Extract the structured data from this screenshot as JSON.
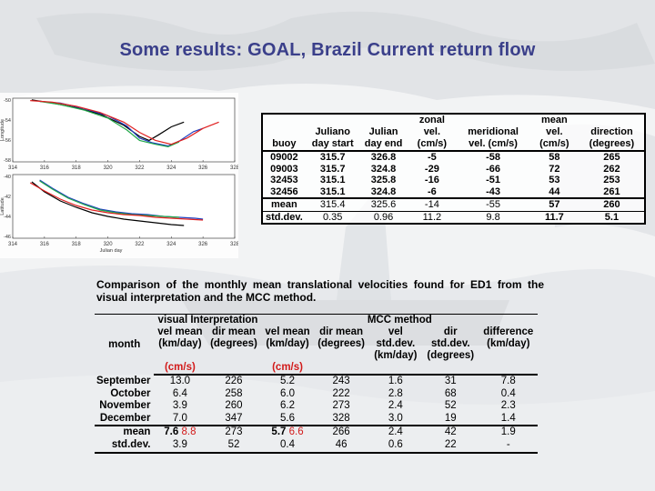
{
  "slide": {
    "title": "Some results: GOAL, Brazil Current return flow"
  },
  "colors": {
    "title": "#3a3f8a",
    "red_values": "#d21a1a",
    "series": [
      "#000000",
      "#1f3fbf",
      "#22a84a",
      "#e02020"
    ]
  },
  "chart_data": [
    {
      "type": "line",
      "ylabel": "Longitude",
      "xticks": [
        "314",
        "316",
        "318",
        "320",
        "322",
        "324",
        "326",
        "328"
      ],
      "yticks": [
        "-50",
        "-54",
        "-56",
        "-58"
      ],
      "xlim": [
        314,
        328
      ],
      "ylim": [
        -58,
        -50
      ],
      "series": [
        {
          "color": "#000000",
          "x": [
            315.2,
            316.5,
            318,
            319.5,
            321,
            322,
            322.6,
            323.2,
            324,
            324.8
          ],
          "y": [
            -50.2,
            -50.6,
            -51.2,
            -52,
            -53.4,
            -54.8,
            -55.3,
            -54.6,
            -53.6,
            -53
          ]
        },
        {
          "color": "#1f3fbf",
          "x": [
            315.7,
            317,
            318.5,
            320,
            321.2,
            322,
            322.8,
            323.8,
            324.5,
            325.4,
            326
          ],
          "y": [
            -50.4,
            -50.6,
            -51.3,
            -52.2,
            -53.5,
            -55,
            -55.6,
            -56,
            -55.4,
            -54.2,
            -53.8
          ]
        },
        {
          "color": "#22a84a",
          "x": [
            315.7,
            317,
            318.5,
            320,
            321.2,
            322,
            323,
            323.8,
            324.5
          ],
          "y": [
            -50.4,
            -50.8,
            -51.5,
            -52.5,
            -54,
            -55.3,
            -55.8,
            -56.1,
            -55.5
          ]
        },
        {
          "color": "#e02020",
          "x": [
            315.1,
            316.5,
            318,
            319.5,
            321,
            322,
            323,
            324,
            325,
            326,
            327
          ],
          "y": [
            -50.3,
            -50.5,
            -51,
            -51.8,
            -53,
            -54.3,
            -55.3,
            -55.8,
            -55,
            -53.8,
            -53
          ]
        }
      ]
    },
    {
      "type": "line",
      "xlabel": "Julian day",
      "ylabel": "Latitude",
      "xticks": [
        "314",
        "316",
        "318",
        "320",
        "322",
        "324",
        "326",
        "328"
      ],
      "yticks": [
        "-40",
        "-42",
        "-44",
        "-46"
      ],
      "xlim": [
        314,
        328
      ],
      "ylim": [
        -46,
        -39
      ],
      "series": [
        {
          "color": "#000000",
          "x": [
            315.2,
            316,
            317,
            318,
            319,
            320,
            321,
            322,
            323,
            324,
            324.8
          ],
          "y": [
            -39.8,
            -40.9,
            -41.9,
            -42.6,
            -43.2,
            -43.6,
            -43.9,
            -44.1,
            -44.3,
            -44.5,
            -44.6
          ]
        },
        {
          "color": "#1f3fbf",
          "x": [
            315.7,
            316.5,
            317.5,
            318.5,
            319.5,
            320.5,
            321.5,
            322.5,
            323.5,
            324.5,
            325.5,
            326
          ],
          "y": [
            -39.6,
            -40.5,
            -41.5,
            -42.2,
            -42.8,
            -43.1,
            -43.3,
            -43.4,
            -43.6,
            -43.7,
            -43.8,
            -43.9
          ]
        },
        {
          "color": "#22a84a",
          "x": [
            315.7,
            316.5,
            317.5,
            318.5,
            319.5,
            320.5,
            321.5,
            322.5,
            323.5,
            324.5
          ],
          "y": [
            -39.7,
            -40.6,
            -41.6,
            -42.3,
            -42.9,
            -43.2,
            -43.4,
            -43.5,
            -43.6,
            -43.7
          ]
        },
        {
          "color": "#e02020",
          "x": [
            315.1,
            316,
            317,
            318,
            319,
            320,
            321,
            322,
            323,
            324,
            325,
            326
          ],
          "y": [
            -39.9,
            -40.8,
            -41.7,
            -42.4,
            -42.9,
            -43.2,
            -43.4,
            -43.5,
            -43.7,
            -43.8,
            -43.9,
            -44
          ]
        }
      ]
    }
  ],
  "buoy_table": {
    "headers": [
      "buoy",
      "Juliano day start",
      "Julian day end",
      "zonal vel. (cm/s)",
      "meridional vel. (cm/s)",
      "mean vel. (cm/s)",
      "direction (degrees)"
    ],
    "rows": [
      [
        "09002",
        "315.7",
        "326.8",
        "-5",
        "-58",
        "58",
        "265"
      ],
      [
        "09003",
        "315.7",
        "324.8",
        "-29",
        "-66",
        "72",
        "262"
      ],
      [
        "32453",
        "315.1",
        "325.8",
        "-16",
        "-51",
        "53",
        "253"
      ],
      [
        "32456",
        "315.1",
        "324.8",
        "-6",
        "-43",
        "44",
        "261"
      ]
    ],
    "mean": [
      "mean",
      "315.4",
      "325.6",
      "-14",
      "-55",
      "57",
      "260"
    ],
    "stddev": [
      "std.dev.",
      "0.35",
      "0.96",
      "11.2",
      "9.8",
      "11.7",
      "5.1"
    ]
  },
  "caption": "Comparison of the monthly mean translational velocities found for ED1 from the visual interpretation and the MCC method.",
  "mcc_table": {
    "group_visual": "visual Interpretation",
    "group_mcc": "MCC method",
    "month_label": "month",
    "col_vis_vel": "vel mean (km/day)",
    "col_vis_vel_cms": "(cm/s)",
    "col_vis_dir": "dir mean (degrees)",
    "col_mcc_vel": "vel mean (km/day)",
    "col_mcc_vel_cms": "(cm/s)",
    "col_mcc_dir": "dir mean (degrees)",
    "col_vel_sd": "vel std.dev. (km/day)",
    "col_dir_sd": "dir std.dev. (degrees)",
    "col_diff": "difference (km/day)",
    "rows": [
      [
        "September",
        "13.0",
        "226",
        "5.2",
        "243",
        "1.6",
        "31",
        "7.8"
      ],
      [
        "October",
        "6.4",
        "258",
        "6.0",
        "222",
        "2.8",
        "68",
        "0.4"
      ],
      [
        "November",
        "3.9",
        "260",
        "6.2",
        "273",
        "2.4",
        "52",
        "2.3"
      ],
      [
        "December",
        "7.0",
        "347",
        "5.6",
        "328",
        "3.0",
        "19",
        "1.4"
      ]
    ],
    "mean": {
      "label": "mean",
      "vis_vel": "7.6",
      "vis_vel_cms": "8.8",
      "vis_dir": "273",
      "mcc_vel": "5.7",
      "mcc_vel_cms": "6.6",
      "mcc_dir": "266",
      "vel_sd": "2.4",
      "dir_sd": "42",
      "diff": "1.9"
    },
    "stddev": [
      "std.dev.",
      "3.9",
      "52",
      "0.4",
      "46",
      "0.6",
      "22",
      "-"
    ]
  }
}
